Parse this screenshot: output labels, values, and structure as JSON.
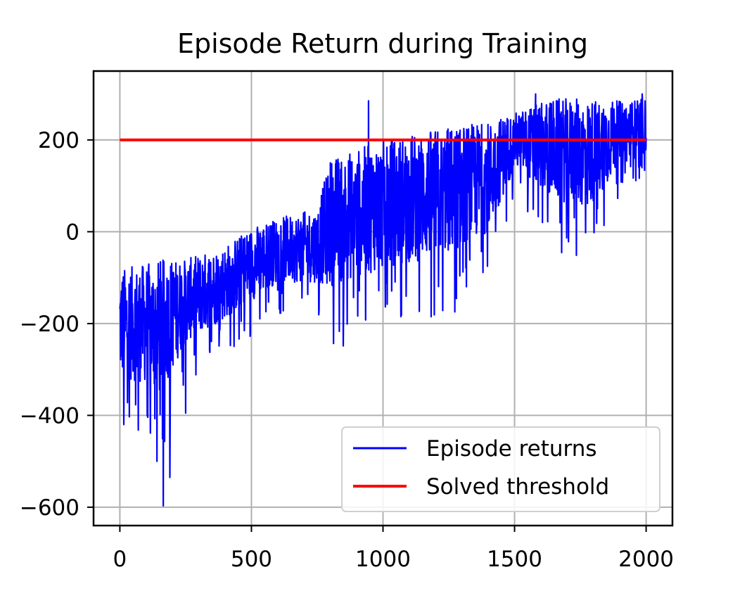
{
  "chart_data": {
    "type": "line",
    "title": "Episode Return during Training",
    "xlabel": "",
    "ylabel": "",
    "xlim": [
      -100,
      2100
    ],
    "ylim": [
      -640,
      350
    ],
    "xticks": [
      0,
      500,
      1000,
      1500,
      2000
    ],
    "xtick_labels": [
      "0",
      "500",
      "1000",
      "1500",
      "2000"
    ],
    "yticks": [
      200,
      0,
      -200,
      -400,
      -600
    ],
    "ytick_labels": [
      "200",
      "0",
      "−200",
      "−400",
      "−600"
    ],
    "grid": true,
    "legend_position": "lower-right",
    "series": [
      {
        "name": "Episode returns",
        "color": "#0000ff",
        "style": "noisy-line",
        "x_range": [
          0,
          2000
        ],
        "trend_points": [
          {
            "x": 0,
            "y": -200,
            "spread": 120
          },
          {
            "x": 100,
            "y": -200,
            "spread": 130
          },
          {
            "x": 150,
            "y": -210,
            "spread": 150
          },
          {
            "x": 250,
            "y": -150,
            "spread": 90
          },
          {
            "x": 400,
            "y": -110,
            "spread": 80
          },
          {
            "x": 500,
            "y": -70,
            "spread": 80
          },
          {
            "x": 600,
            "y": -40,
            "spread": 70
          },
          {
            "x": 750,
            "y": -30,
            "spread": 80
          },
          {
            "x": 800,
            "y": 20,
            "spread": 140
          },
          {
            "x": 1000,
            "y": 60,
            "spread": 140
          },
          {
            "x": 1250,
            "y": 90,
            "spread": 140
          },
          {
            "x": 1400,
            "y": 120,
            "spread": 120
          },
          {
            "x": 1500,
            "y": 200,
            "spread": 60
          },
          {
            "x": 1650,
            "y": 180,
            "spread": 110
          },
          {
            "x": 1780,
            "y": 170,
            "spread": 120
          },
          {
            "x": 1900,
            "y": 215,
            "spread": 70
          },
          {
            "x": 2000,
            "y": 230,
            "spread": 60
          }
        ],
        "extremes": [
          {
            "x": 165,
            "y": -597
          },
          {
            "x": 190,
            "y": -535
          },
          {
            "x": 70,
            "y": -432
          },
          {
            "x": 15,
            "y": -420
          },
          {
            "x": 250,
            "y": -395
          },
          {
            "x": 1580,
            "y": 305
          },
          {
            "x": 1985,
            "y": 300
          },
          {
            "x": 945,
            "y": 285
          }
        ]
      },
      {
        "name": "Solved threshold",
        "color": "#ff0000",
        "style": "line",
        "x": [
          0,
          2000
        ],
        "y": [
          200,
          200
        ]
      }
    ]
  }
}
